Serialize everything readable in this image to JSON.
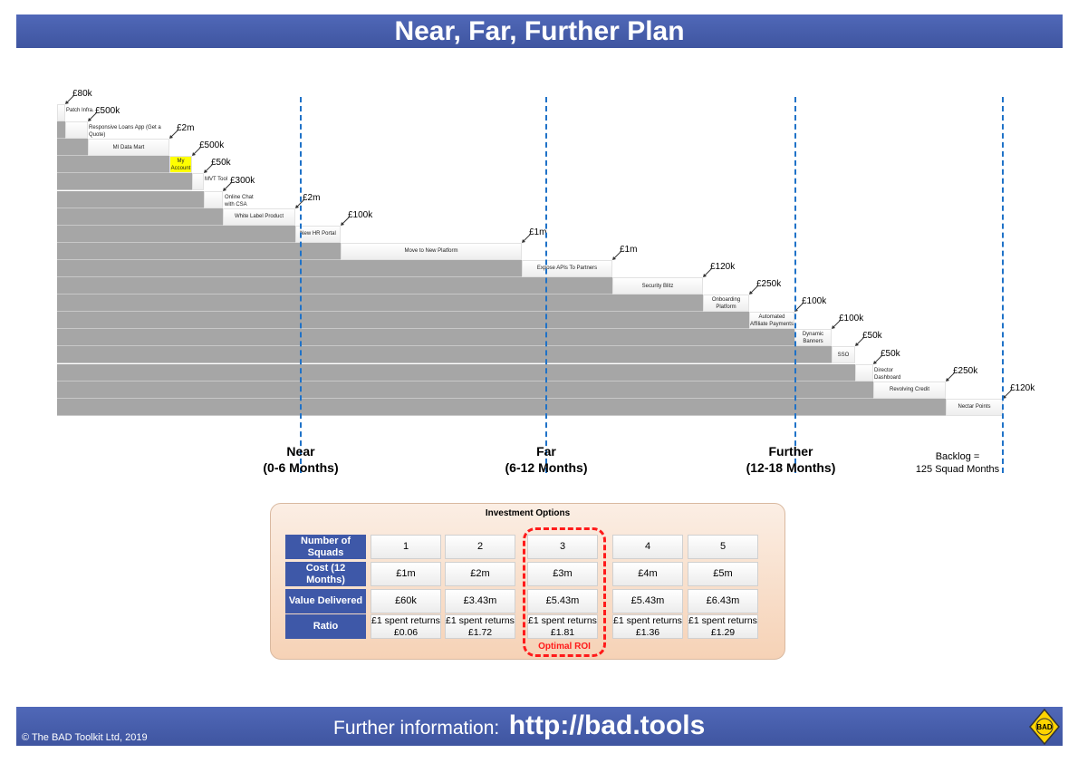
{
  "title": "Near, Far, Further Plan",
  "roadmap": {
    "items": [
      {
        "label": "Patch Infra.",
        "cost": "£80k"
      },
      {
        "label": "Responsive Loans App (Get a Quote)",
        "cost": "£500k"
      },
      {
        "label": "MI Data Mart",
        "cost": "£2m"
      },
      {
        "label": "My Account",
        "cost": "£500k",
        "highlight": "#ffff00"
      },
      {
        "label": "MVT Tool",
        "cost": "£50k"
      },
      {
        "label": "Online Chat with CSA",
        "cost": "£300k"
      },
      {
        "label": "White Label Product",
        "cost": "£2m"
      },
      {
        "label": "New HR Portal",
        "cost": "£100k"
      },
      {
        "label": "Move to New Platform",
        "cost": "£1m"
      },
      {
        "label": "Expose APIs To Partners",
        "cost": "£1m"
      },
      {
        "label": "Security Blitz",
        "cost": "£120k"
      },
      {
        "label": "Onboarding Platform",
        "cost": "£250k"
      },
      {
        "label": "Automated Affiliate Payments",
        "cost": "£100k"
      },
      {
        "label": "Dynamic Banners",
        "cost": "£100k"
      },
      {
        "label": "SSO",
        "cost": "£50k"
      },
      {
        "label": "Director Dashboard",
        "cost": "£50k"
      },
      {
        "label": "Revolving Credit",
        "cost": "£250k"
      },
      {
        "label": "Nectar Points",
        "cost": "£120k"
      }
    ],
    "milestones": [
      {
        "name": "Near",
        "range": "(0-6 Months)"
      },
      {
        "name": "Far",
        "range": "(6-12 Months)"
      },
      {
        "name": "Further",
        "range": "(12-18 Months)"
      }
    ],
    "backlog": {
      "line1": "Backlog =",
      "line2": "125 Squad Months"
    }
  },
  "investment": {
    "title": "Investment Options",
    "row_headers": [
      "Number of Squads",
      "Cost (12 Months)",
      "Value Delivered",
      "Ratio"
    ],
    "columns": [
      {
        "squads": "1",
        "cost": "£1m",
        "value": "£60k",
        "ratio": "£1 spent returns £0.06"
      },
      {
        "squads": "2",
        "cost": "£2m",
        "value": "£3.43m",
        "ratio": "£1 spent returns £1.72"
      },
      {
        "squads": "3",
        "cost": "£3m",
        "value": "£5.43m",
        "ratio": "£1 spent returns £1.81"
      },
      {
        "squads": "4",
        "cost": "£4m",
        "value": "£5.43m",
        "ratio": "£1 spent returns £1.36"
      },
      {
        "squads": "5",
        "cost": "£5m",
        "value": "£6.43m",
        "ratio": "£1 spent returns £1.29"
      }
    ],
    "optimal_label": "Optimal ROI",
    "optimal_color": "#ff1a1a"
  },
  "footer": {
    "copyright": "© The BAD Toolkit Ltd, 2019",
    "info_label": "Further information:",
    "url": "http://bad.tools",
    "logo_text": "BAD"
  }
}
